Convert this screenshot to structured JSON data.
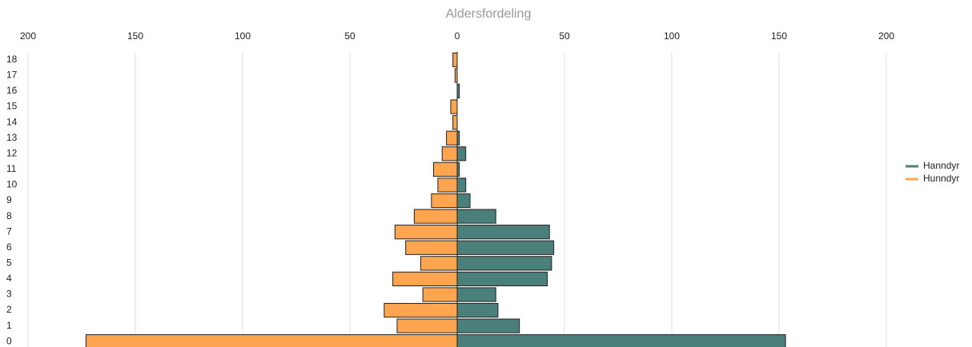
{
  "chart_data": {
    "type": "bar",
    "title": "Aldersfordeling",
    "categories": [
      "0",
      "1",
      "2",
      "3",
      "4",
      "5",
      "6",
      "7",
      "8",
      "9",
      "10",
      "11",
      "12",
      "13",
      "14",
      "15",
      "16",
      "17",
      "18"
    ],
    "series": [
      {
        "name": "Hanndyr",
        "color": "#4a8079",
        "values": [
          153,
          29,
          19,
          18,
          42,
          44,
          45,
          43,
          18,
          6,
          4,
          1,
          4,
          1,
          0,
          0,
          1,
          0,
          0
        ]
      },
      {
        "name": "Hunndyr",
        "color": "#ffa54f",
        "values": [
          -173,
          -28,
          -34,
          -16,
          -30,
          -17,
          -24,
          -29,
          -20,
          -12,
          -9,
          -11,
          -7,
          -5,
          -2,
          -3,
          0,
          -1,
          -2
        ]
      }
    ],
    "xlim": [
      -200,
      200
    ],
    "xticks": [
      {
        "value": -200,
        "label": "200"
      },
      {
        "value": -150,
        "label": "150"
      },
      {
        "value": -100,
        "label": "100"
      },
      {
        "value": -50,
        "label": "50"
      },
      0,
      50,
      100,
      150,
      200
    ],
    "grid": true,
    "legend": "right"
  }
}
